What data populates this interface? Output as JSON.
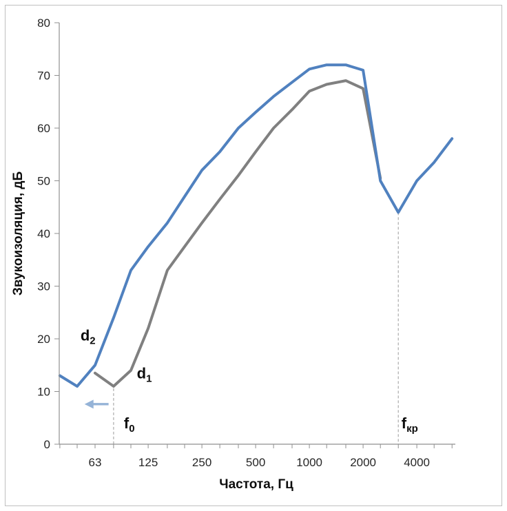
{
  "window": {
    "background": "#ffffff",
    "border_color": "#bfbfbf"
  },
  "chart_data": {
    "type": "line",
    "title": "",
    "xlabel": "Частота, Гц",
    "ylabel": "Звукоизоляция, дБ",
    "x_scale": "log",
    "ylim": [
      0,
      80
    ],
    "grid": false,
    "legend": "inline-labels",
    "y_axis": {
      "ticks": [
        0,
        10,
        20,
        30,
        40,
        50,
        60,
        70,
        80
      ]
    },
    "x_axis": {
      "minor_tick_freqs": [
        40,
        50,
        63,
        80,
        100,
        125,
        160,
        200,
        250,
        315,
        400,
        500,
        630,
        800,
        1000,
        1250,
        1600,
        2000,
        2500,
        3150,
        4000,
        5000,
        6300
      ],
      "labeled_ticks": [
        {
          "freq": 63,
          "label": "63"
        },
        {
          "freq": 125,
          "label": "125"
        },
        {
          "freq": 250,
          "label": "250"
        },
        {
          "freq": 500,
          "label": "500"
        },
        {
          "freq": 1000,
          "label": "1000"
        },
        {
          "freq": 2000,
          "label": "2000"
        },
        {
          "freq": 4000,
          "label": "4000"
        }
      ]
    },
    "series": [
      {
        "name": "d1",
        "color": "#808080",
        "width": 4,
        "points": [
          [
            63,
            13.5
          ],
          [
            80,
            11
          ],
          [
            100,
            14
          ],
          [
            125,
            22
          ],
          [
            160,
            33
          ],
          [
            200,
            37.5
          ],
          [
            250,
            42
          ],
          [
            315,
            46.5
          ],
          [
            400,
            51
          ],
          [
            500,
            55.5
          ],
          [
            630,
            60
          ],
          [
            800,
            63.5
          ],
          [
            1000,
            67
          ],
          [
            1250,
            68.3
          ],
          [
            1600,
            69
          ],
          [
            2000,
            67.5
          ],
          [
            2500,
            50.5
          ]
        ]
      },
      {
        "name": "d2",
        "color": "#5081bf",
        "width": 4,
        "points": [
          [
            40,
            13
          ],
          [
            50,
            11
          ],
          [
            63,
            15
          ],
          [
            80,
            24
          ],
          [
            100,
            33
          ],
          [
            125,
            37.5
          ],
          [
            160,
            42
          ],
          [
            200,
            47
          ],
          [
            250,
            52
          ],
          [
            315,
            55.5
          ],
          [
            400,
            60
          ],
          [
            500,
            63
          ],
          [
            630,
            66
          ],
          [
            800,
            68.7
          ],
          [
            1000,
            71.2
          ],
          [
            1250,
            72
          ],
          [
            1600,
            72
          ],
          [
            2000,
            71
          ],
          [
            2500,
            50
          ],
          [
            3150,
            44
          ],
          [
            4000,
            50
          ],
          [
            5000,
            53.5
          ],
          [
            6300,
            58
          ]
        ]
      }
    ],
    "annotations": {
      "curve_labels": [
        {
          "main": "d",
          "sub": "2",
          "freq": 57.5,
          "db": 20.6
        },
        {
          "main": "d",
          "sub": "1",
          "freq": 119,
          "db": 13.4
        }
      ],
      "axis_markers": [
        {
          "main": "f",
          "sub": "0",
          "freq": 80,
          "top_db": 10.6,
          "label_freq": 98,
          "label_db": 3.9
        },
        {
          "main": "f",
          "sub": "кр",
          "freq": 3150,
          "top_db": 44,
          "label_freq": 3650,
          "label_db": 3.9
        }
      ],
      "arrow": {
        "direction": "left",
        "tip_freq": 55,
        "tail_freq": 75,
        "db": 7.6,
        "color": "#95b3d7"
      }
    }
  }
}
